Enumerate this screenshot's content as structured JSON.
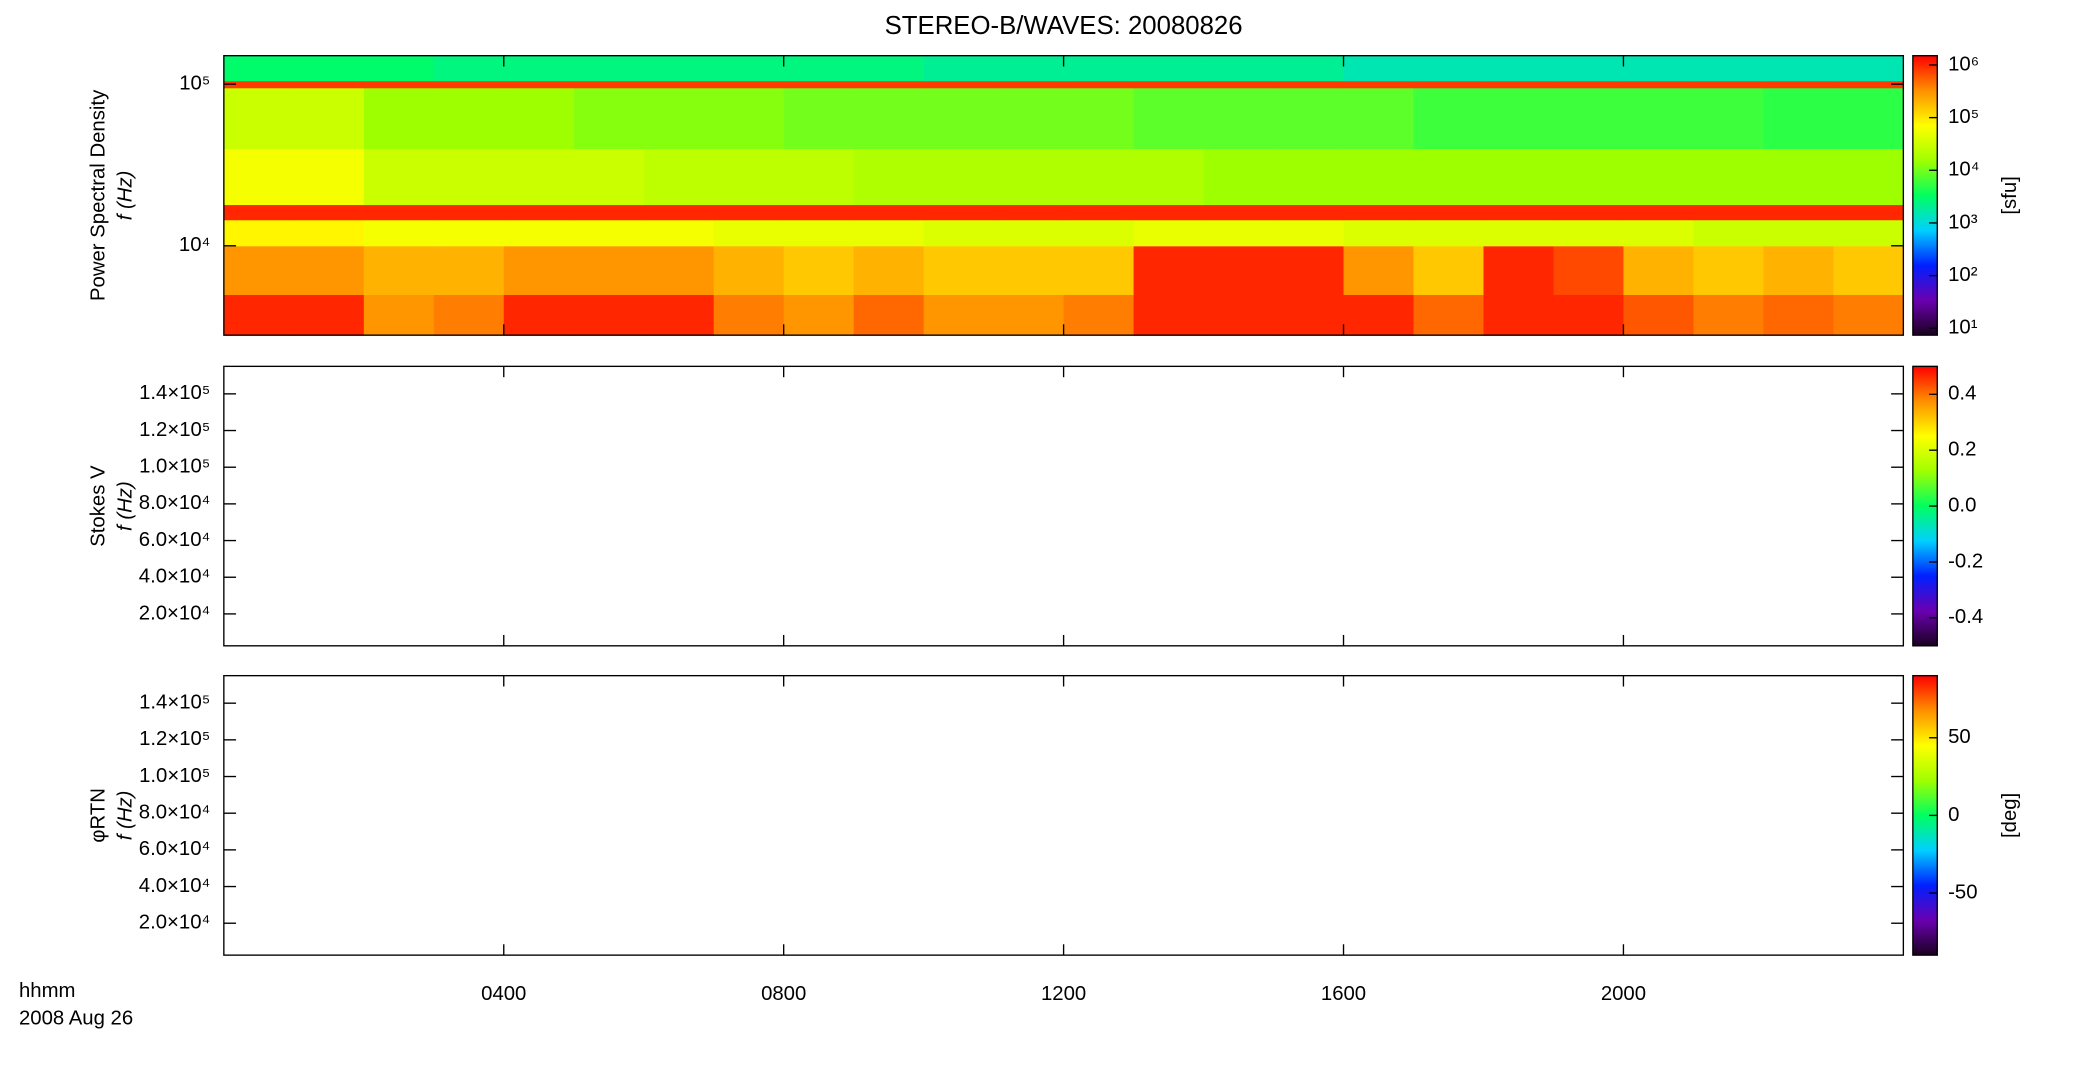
{
  "title": "STEREO-B/WAVES: 20080826",
  "footer": [
    "hhmm",
    "2008 Aug 26"
  ],
  "chart_data": [
    {
      "type": "heatmap",
      "ylabel": [
        "Power Spectral Density",
        "f (Hz)"
      ],
      "ylog": true,
      "ylim": [
        2800,
        150000
      ],
      "yticks": [
        {
          "value": 10000,
          "label": "10⁴"
        },
        {
          "value": 100000,
          "label": "10⁵"
        }
      ],
      "xlim": [
        0,
        24
      ],
      "xticks": [
        4,
        8,
        12,
        16,
        20
      ],
      "x_bins": [
        0,
        1,
        2,
        3,
        4,
        5,
        6,
        7,
        8,
        9,
        10,
        11,
        12,
        13,
        14,
        15,
        16,
        17,
        18,
        19,
        20,
        21,
        22,
        23,
        24
      ],
      "y_bins": [
        2800,
        5000,
        10000,
        14500,
        18000,
        40000,
        95000,
        105000,
        150000
      ],
      "values": [
        [
          1000000,
          1000000,
          300000,
          400000,
          1000000,
          1000000,
          1000000,
          400000,
          300000,
          500000,
          300000,
          300000,
          400000,
          1000000,
          1000000,
          1000000,
          1000000,
          500000,
          1000000,
          1000000,
          600000,
          400000,
          500000,
          400000
        ],
        [
          300000,
          300000,
          200000,
          200000,
          300000,
          300000,
          300000,
          200000,
          150000,
          200000,
          150000,
          150000,
          150000,
          1000000,
          1000000,
          1000000,
          300000,
          150000,
          1000000,
          700000,
          200000,
          150000,
          200000,
          150000
        ],
        [
          80000,
          80000,
          60000,
          60000,
          60000,
          60000,
          60000,
          50000,
          50000,
          50000,
          40000,
          40000,
          40000,
          50000,
          50000,
          50000,
          40000,
          40000,
          40000,
          40000,
          40000,
          30000,
          30000,
          30000
        ],
        [
          1000000,
          1000000,
          1000000,
          1000000,
          1000000,
          1000000,
          1000000,
          1000000,
          1000000,
          1000000,
          1000000,
          1000000,
          1000000,
          1000000,
          1000000,
          1000000,
          1000000,
          1000000,
          1000000,
          1000000,
          1000000,
          1000000,
          1000000,
          1000000
        ],
        [
          60000,
          60000,
          30000,
          30000,
          30000,
          30000,
          25000,
          25000,
          25000,
          20000,
          20000,
          20000,
          20000,
          20000,
          15000,
          15000,
          15000,
          15000,
          15000,
          15000,
          15000,
          15000,
          15000,
          15000
        ],
        [
          30000,
          30000,
          15000,
          15000,
          15000,
          12000,
          12000,
          12000,
          10000,
          10000,
          10000,
          10000,
          10000,
          8000,
          8000,
          8000,
          8000,
          6000,
          6000,
          6000,
          6000,
          6000,
          5000,
          5000
        ],
        [
          800000,
          800000,
          800000,
          800000,
          800000,
          800000,
          800000,
          800000,
          800000,
          800000,
          800000,
          800000,
          800000,
          800000,
          800000,
          800000,
          800000,
          800000,
          800000,
          800000,
          800000,
          800000,
          800000,
          800000
        ],
        [
          3000,
          3000,
          3000,
          2500,
          2500,
          2500,
          2500,
          2500,
          2500,
          2500,
          2000,
          2000,
          2000,
          2000,
          2000,
          2000,
          1500,
          1500,
          1500,
          1500,
          1500,
          1500,
          1500,
          1500
        ]
      ],
      "colorbar": {
        "zlog": true,
        "zlim": [
          7.4,
          1500000
        ],
        "label": "[sfu]",
        "ticks": [
          {
            "value": 10,
            "label": "10¹"
          },
          {
            "value": 100,
            "label": "10²"
          },
          {
            "value": 1000,
            "label": "10³"
          },
          {
            "value": 10000,
            "label": "10⁴"
          },
          {
            "value": 100000,
            "label": "10⁵"
          },
          {
            "value": 1000000,
            "label": "10⁶"
          }
        ],
        "colormap": [
          "#1a0020",
          "#6a00b0",
          "#0020ff",
          "#00d0ff",
          "#00ff60",
          "#a0ff00",
          "#ffff00",
          "#ff9000",
          "#ff0000"
        ]
      }
    },
    {
      "type": "heatmap",
      "ylabel": [
        "Stokes V",
        "f (Hz)"
      ],
      "ylog": false,
      "ylim": [
        2600,
        155000
      ],
      "yticks": [
        {
          "value": 20000,
          "label": "2.0×10⁴"
        },
        {
          "value": 40000,
          "label": "4.0×10⁴"
        },
        {
          "value": 60000,
          "label": "6.0×10⁴"
        },
        {
          "value": 80000,
          "label": "8.0×10⁴"
        },
        {
          "value": 100000,
          "label": "1.0×10⁵"
        },
        {
          "value": 120000,
          "label": "1.2×10⁵"
        },
        {
          "value": 140000,
          "label": "1.4×10⁵"
        }
      ],
      "xlim": [
        0,
        24
      ],
      "xticks": [
        4,
        8,
        12,
        16,
        20
      ],
      "colorbar": {
        "zlog": false,
        "zlim": [
          -0.5,
          0.5
        ],
        "ticks": [
          -0.4,
          -0.2,
          {
            "value": 0,
            "label": "0.0"
          },
          0.2,
          0.4
        ],
        "colormap": [
          "#1a0020",
          "#6a00b0",
          "#0020ff",
          "#00d0ff",
          "#00ff60",
          "#a0ff00",
          "#ffff00",
          "#ff9000",
          "#ff0000"
        ]
      }
    },
    {
      "type": "heatmap",
      "ylabel": [
        "φRTN",
        "f (Hz)"
      ],
      "ylog": false,
      "ylim": [
        2600,
        155000
      ],
      "yticks": [
        {
          "value": 20000,
          "label": "2.0×10⁴"
        },
        {
          "value": 40000,
          "label": "4.0×10⁴"
        },
        {
          "value": 60000,
          "label": "6.0×10⁴"
        },
        {
          "value": 80000,
          "label": "8.0×10⁴"
        },
        {
          "value": 100000,
          "label": "1.0×10⁵"
        },
        {
          "value": 120000,
          "label": "1.2×10⁵"
        },
        {
          "value": 140000,
          "label": "1.4×10⁵"
        }
      ],
      "xlim": [
        0,
        24
      ],
      "xticks": [
        {
          "value": 4,
          "label": "0400"
        },
        {
          "value": 8,
          "label": "0800"
        },
        {
          "value": 12,
          "label": "1200"
        },
        {
          "value": 16,
          "label": "1600"
        },
        {
          "value": 20,
          "label": "2000"
        }
      ],
      "colorbar": {
        "zlog": false,
        "zlim": [
          -90,
          90
        ],
        "label": "[deg]",
        "ticks": [
          -50,
          0,
          50
        ],
        "colormap": [
          "#1a0020",
          "#6a00b0",
          "#0020ff",
          "#00d0ff",
          "#00ff60",
          "#a0ff00",
          "#ffff00",
          "#ff9000",
          "#ff0000"
        ]
      }
    }
  ]
}
